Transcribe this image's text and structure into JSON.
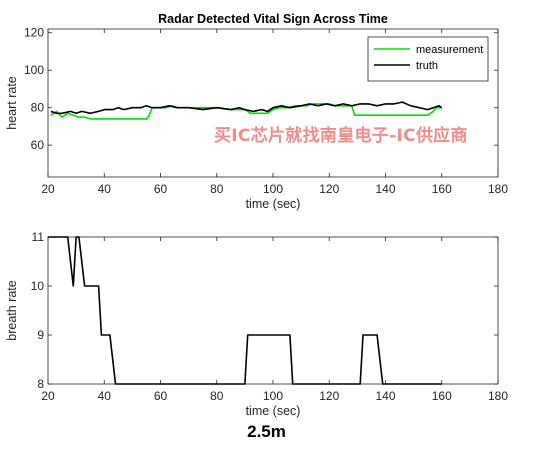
{
  "chart_data": [
    {
      "type": "line",
      "title": "Radar Detected Vital Sign Across Time",
      "xlabel": "time (sec)",
      "ylabel": "heart rate",
      "xlim": [
        20,
        180
      ],
      "ylim": [
        43,
        122
      ],
      "xticks": [
        20,
        40,
        60,
        80,
        100,
        120,
        140,
        160,
        180
      ],
      "yticks": [
        60,
        80,
        100,
        120
      ],
      "legend": "top-right",
      "series": [
        {
          "name": "measurement",
          "color": "#00e000",
          "x": [
            21,
            23,
            25,
            27,
            29,
            31,
            33,
            35,
            40,
            45,
            50,
            55,
            56,
            57,
            60,
            62,
            64,
            66,
            68,
            70,
            75,
            80,
            85,
            90,
            92,
            94,
            96,
            98,
            100,
            102,
            105,
            108,
            110,
            112,
            114,
            116,
            118,
            120,
            122,
            125,
            128,
            129,
            131,
            135,
            140,
            145,
            150,
            155,
            157,
            158,
            159,
            160
          ],
          "y": [
            76,
            78,
            75,
            77,
            76,
            75,
            75,
            74,
            74,
            74,
            74,
            74,
            76,
            80,
            80,
            80,
            81,
            80,
            80,
            80,
            80,
            80,
            79,
            79,
            77,
            77,
            77,
            77,
            79,
            80,
            80,
            81,
            81,
            81,
            82,
            82,
            82,
            82,
            81,
            81,
            81,
            76,
            76,
            76,
            76,
            76,
            76,
            76,
            78,
            80,
            80,
            80
          ]
        },
        {
          "name": "truth",
          "color": "#000000",
          "x": [
            21,
            23,
            25,
            28,
            30,
            32,
            35,
            38,
            40,
            43,
            45,
            47,
            50,
            53,
            55,
            57,
            60,
            63,
            66,
            70,
            75,
            80,
            85,
            88,
            90,
            93,
            96,
            98,
            100,
            103,
            106,
            110,
            113,
            116,
            119,
            122,
            125,
            128,
            131,
            134,
            137,
            140,
            143,
            146,
            149,
            152,
            155,
            157,
            159,
            160
          ],
          "y": [
            78,
            77,
            77,
            78,
            77,
            78,
            77,
            78,
            79,
            79,
            80,
            79,
            80,
            80,
            81,
            80,
            80,
            81,
            80,
            80,
            79,
            80,
            79,
            80,
            79,
            78,
            79,
            78,
            80,
            81,
            80,
            81,
            82,
            81,
            82,
            81,
            82,
            81,
            82,
            82,
            81,
            82,
            82,
            83,
            81,
            80,
            79,
            80,
            81,
            80
          ]
        }
      ]
    },
    {
      "type": "line",
      "title": "",
      "xlabel": "time (sec)",
      "ylabel": "breath rate",
      "xlim": [
        20,
        180
      ],
      "ylim": [
        8,
        11
      ],
      "xticks": [
        20,
        40,
        60,
        80,
        100,
        120,
        140,
        160,
        180
      ],
      "yticks": [
        8,
        9,
        10,
        11
      ],
      "series": [
        {
          "name": "",
          "color": "#000000",
          "x": [
            20,
            27,
            28,
            29,
            30,
            31,
            32,
            33,
            38,
            39,
            42,
            43,
            44,
            90,
            91,
            106,
            107,
            131,
            132,
            137,
            138,
            139,
            160
          ],
          "y": [
            11,
            11,
            10.5,
            10,
            11,
            11,
            10.5,
            10,
            10,
            9,
            9,
            8.5,
            8,
            8,
            9,
            9,
            8,
            8,
            9,
            9,
            8.5,
            8,
            8
          ]
        }
      ]
    }
  ],
  "caption": "2.5m",
  "watermark": "买IC芯片就找南皇电子-IC供应商"
}
